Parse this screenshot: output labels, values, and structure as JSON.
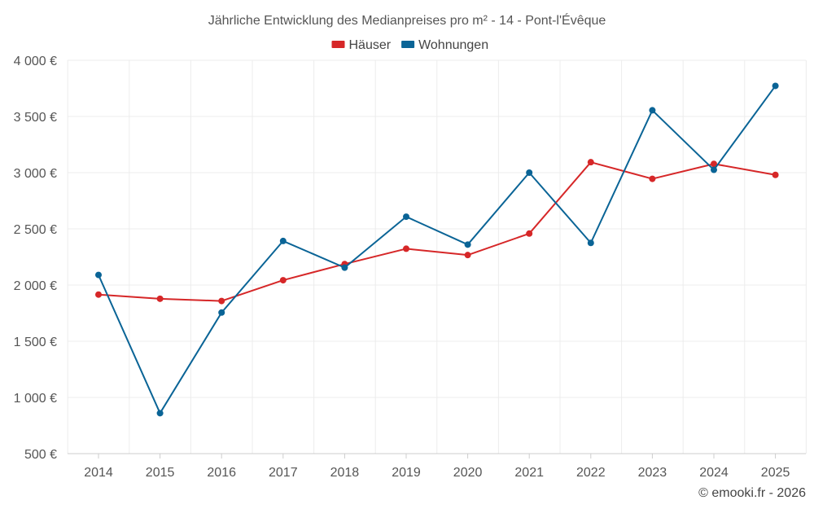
{
  "chart_data": {
    "type": "line",
    "title": "Jährliche Entwicklung des Medianpreises pro m² - 14 - Pont-l'Évêque",
    "categories": [
      "2014",
      "2015",
      "2016",
      "2017",
      "2018",
      "2019",
      "2020",
      "2021",
      "2022",
      "2023",
      "2024",
      "2025"
    ],
    "ylim": [
      500,
      4000
    ],
    "yticks": [
      500,
      1000,
      1500,
      2000,
      2500,
      3000,
      3500,
      4000
    ],
    "ytick_labels": [
      "500 €",
      "1 000 €",
      "1 500 €",
      "2 000 €",
      "2 500 €",
      "3 000 €",
      "3 500 €",
      "4 000 €"
    ],
    "grid": true,
    "legend_position": "top-center",
    "series": [
      {
        "name": "Häuser",
        "color": "#d62728",
        "values": [
          1915,
          1878,
          1858,
          2043,
          2187,
          2323,
          2267,
          2458,
          3093,
          2945,
          3078,
          2980
        ]
      },
      {
        "name": "Wohnungen",
        "color": "#0a6496",
        "values": [
          2090,
          860,
          1755,
          2392,
          2155,
          2608,
          2360,
          3000,
          2375,
          3555,
          3025,
          3772
        ]
      }
    ],
    "credit": "© emooki.fr - 2026"
  }
}
